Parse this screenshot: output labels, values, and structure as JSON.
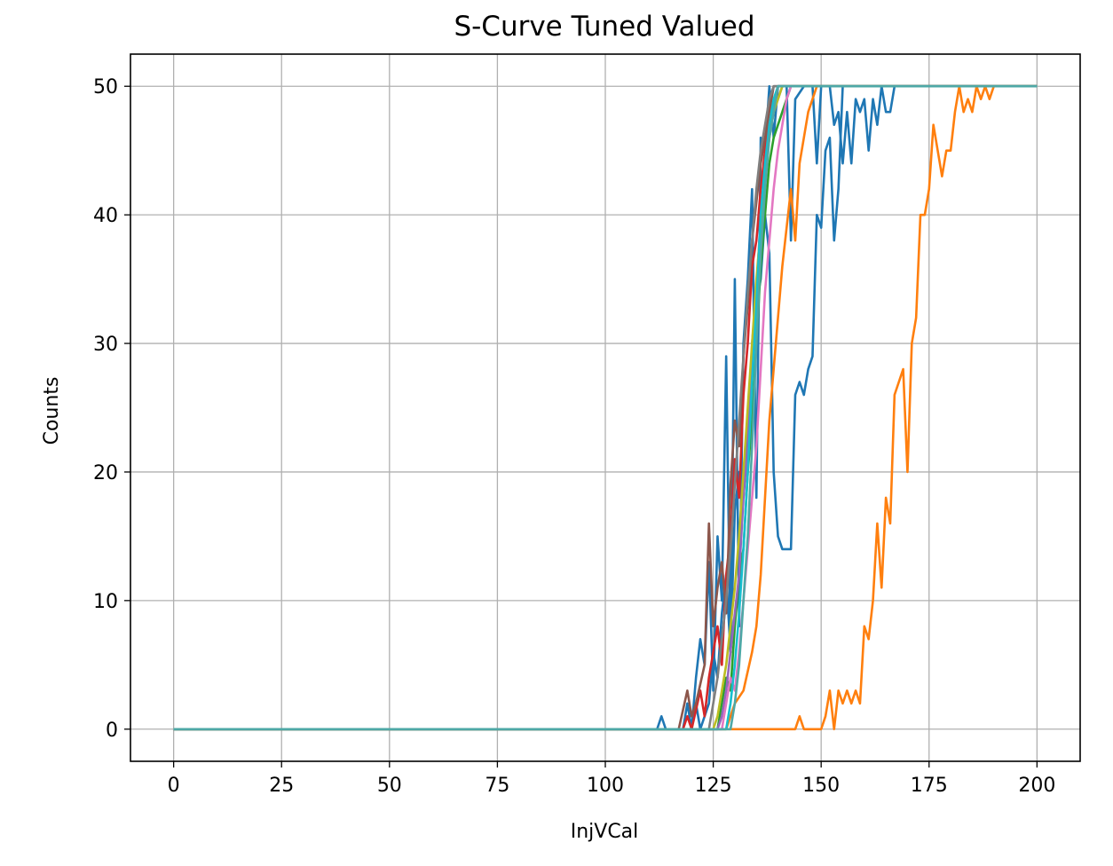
{
  "chart_data": {
    "type": "line",
    "title": "S-Curve Tuned Valued",
    "xlabel": "InjVCal",
    "ylabel": "Counts",
    "xlim": [
      -10,
      210
    ],
    "ylim": [
      -2.5,
      52.5
    ],
    "xticks": [
      0,
      25,
      50,
      75,
      100,
      125,
      150,
      175,
      200
    ],
    "yticks": [
      0,
      10,
      20,
      30,
      40,
      50
    ],
    "grid": true,
    "legend": "none",
    "x_range": [
      0,
      200
    ],
    "series": [
      {
        "color": "#1f77b4",
        "points": [
          [
            0,
            0
          ],
          [
            112,
            0
          ],
          [
            113,
            1
          ],
          [
            114,
            0
          ],
          [
            118,
            0
          ],
          [
            119,
            2
          ],
          [
            120,
            0
          ],
          [
            121,
            4
          ],
          [
            122,
            7
          ],
          [
            123,
            5
          ],
          [
            124,
            13
          ],
          [
            125,
            3
          ],
          [
            126,
            15
          ],
          [
            127,
            10
          ],
          [
            128,
            29
          ],
          [
            129,
            6
          ],
          [
            130,
            35
          ],
          [
            131,
            8
          ],
          [
            132,
            30
          ],
          [
            133,
            35
          ],
          [
            134,
            42
          ],
          [
            135,
            18
          ],
          [
            136,
            46
          ],
          [
            137,
            45
          ],
          [
            138,
            50
          ],
          [
            139,
            46
          ],
          [
            140,
            50
          ],
          [
            142,
            50
          ],
          [
            143,
            38
          ],
          [
            144,
            49
          ],
          [
            146,
            50
          ],
          [
            148,
            50
          ],
          [
            149,
            44
          ],
          [
            150,
            50
          ],
          [
            152,
            50
          ],
          [
            153,
            47
          ],
          [
            154,
            48
          ],
          [
            155,
            44
          ],
          [
            156,
            48
          ],
          [
            157,
            44
          ],
          [
            158,
            49
          ],
          [
            159,
            48
          ],
          [
            160,
            49
          ],
          [
            161,
            45
          ],
          [
            162,
            49
          ],
          [
            163,
            47
          ],
          [
            164,
            50
          ],
          [
            165,
            48
          ],
          [
            166,
            48
          ],
          [
            167,
            50
          ],
          [
            200,
            50
          ]
        ]
      },
      {
        "color": "#1f77b4",
        "points": [
          [
            0,
            0
          ],
          [
            120,
            0
          ],
          [
            121,
            2
          ],
          [
            122,
            0
          ],
          [
            124,
            2
          ],
          [
            125,
            6
          ],
          [
            126,
            4
          ],
          [
            127,
            9
          ],
          [
            128,
            12
          ],
          [
            129,
            6
          ],
          [
            130,
            17
          ],
          [
            131,
            20
          ],
          [
            132,
            18
          ],
          [
            133,
            24
          ],
          [
            134,
            28
          ],
          [
            135,
            33
          ],
          [
            136,
            35
          ],
          [
            137,
            40
          ],
          [
            138,
            37
          ],
          [
            139,
            20
          ],
          [
            140,
            15
          ],
          [
            141,
            14
          ],
          [
            143,
            14
          ],
          [
            144,
            26
          ],
          [
            145,
            27
          ],
          [
            146,
            26
          ],
          [
            147,
            28
          ],
          [
            148,
            29
          ],
          [
            149,
            40
          ],
          [
            150,
            39
          ],
          [
            151,
            45
          ],
          [
            152,
            46
          ],
          [
            153,
            38
          ],
          [
            154,
            42
          ],
          [
            155,
            50
          ],
          [
            200,
            50
          ]
        ]
      },
      {
        "color": "#ff7f0e",
        "points": [
          [
            0,
            0
          ],
          [
            144,
            0
          ],
          [
            145,
            1
          ],
          [
            146,
            0
          ],
          [
            150,
            0
          ],
          [
            151,
            1
          ],
          [
            152,
            3
          ],
          [
            153,
            0
          ],
          [
            154,
            3
          ],
          [
            155,
            2
          ],
          [
            156,
            3
          ],
          [
            157,
            2
          ],
          [
            158,
            3
          ],
          [
            159,
            2
          ],
          [
            160,
            8
          ],
          [
            161,
            7
          ],
          [
            162,
            10
          ],
          [
            163,
            16
          ],
          [
            164,
            11
          ],
          [
            165,
            18
          ],
          [
            166,
            16
          ],
          [
            167,
            26
          ],
          [
            168,
            27
          ],
          [
            169,
            28
          ],
          [
            170,
            20
          ],
          [
            171,
            30
          ],
          [
            172,
            32
          ],
          [
            173,
            40
          ],
          [
            174,
            40
          ],
          [
            175,
            42
          ],
          [
            176,
            47
          ],
          [
            177,
            45
          ],
          [
            178,
            43
          ],
          [
            179,
            45
          ],
          [
            180,
            45
          ],
          [
            181,
            48
          ],
          [
            182,
            50
          ],
          [
            183,
            48
          ],
          [
            184,
            49
          ],
          [
            185,
            48
          ],
          [
            186,
            50
          ],
          [
            187,
            49
          ],
          [
            188,
            50
          ],
          [
            189,
            49
          ],
          [
            190,
            50
          ],
          [
            200,
            50
          ]
        ]
      },
      {
        "color": "#ff7f0e",
        "points": [
          [
            0,
            0
          ],
          [
            128,
            0
          ],
          [
            130,
            2
          ],
          [
            132,
            3
          ],
          [
            134,
            6
          ],
          [
            135,
            8
          ],
          [
            136,
            12
          ],
          [
            137,
            18
          ],
          [
            138,
            24
          ],
          [
            139,
            28
          ],
          [
            140,
            32
          ],
          [
            141,
            36
          ],
          [
            142,
            39
          ],
          [
            143,
            42
          ],
          [
            144,
            38
          ],
          [
            145,
            44
          ],
          [
            146,
            46
          ],
          [
            147,
            48
          ],
          [
            148,
            49
          ],
          [
            149,
            50
          ],
          [
            200,
            50
          ]
        ]
      },
      {
        "color": "#2ca02c",
        "points": [
          [
            0,
            0
          ],
          [
            126,
            0
          ],
          [
            127,
            2
          ],
          [
            128,
            4
          ],
          [
            129,
            3
          ],
          [
            130,
            8
          ],
          [
            131,
            12
          ],
          [
            132,
            14
          ],
          [
            133,
            20
          ],
          [
            134,
            24
          ],
          [
            135,
            30
          ],
          [
            136,
            36
          ],
          [
            137,
            40
          ],
          [
            138,
            44
          ],
          [
            139,
            46
          ],
          [
            140,
            47
          ],
          [
            141,
            48
          ],
          [
            142,
            49
          ],
          [
            143,
            50
          ],
          [
            200,
            50
          ]
        ]
      },
      {
        "color": "#d62728",
        "points": [
          [
            0,
            0
          ],
          [
            118,
            0
          ],
          [
            119,
            1
          ],
          [
            120,
            0
          ],
          [
            122,
            3
          ],
          [
            123,
            1
          ],
          [
            124,
            4
          ],
          [
            125,
            6
          ],
          [
            126,
            8
          ],
          [
            127,
            5
          ],
          [
            128,
            12
          ],
          [
            129,
            15
          ],
          [
            130,
            21
          ],
          [
            131,
            18
          ],
          [
            132,
            26
          ],
          [
            133,
            30
          ],
          [
            134,
            36
          ],
          [
            135,
            38
          ],
          [
            136,
            42
          ],
          [
            137,
            45
          ],
          [
            138,
            47
          ],
          [
            139,
            48
          ],
          [
            140,
            50
          ],
          [
            200,
            50
          ]
        ]
      },
      {
        "color": "#9467bd",
        "points": [
          [
            0,
            0
          ],
          [
            126,
            0
          ],
          [
            127,
            1
          ],
          [
            128,
            3
          ],
          [
            129,
            6
          ],
          [
            130,
            9
          ],
          [
            131,
            12
          ],
          [
            132,
            18
          ],
          [
            133,
            22
          ],
          [
            134,
            30
          ],
          [
            135,
            34
          ],
          [
            136,
            40
          ],
          [
            137,
            43
          ],
          [
            138,
            46
          ],
          [
            139,
            48
          ],
          [
            140,
            49
          ],
          [
            141,
            50
          ],
          [
            200,
            50
          ]
        ]
      },
      {
        "color": "#8c564b",
        "points": [
          [
            0,
            0
          ],
          [
            117,
            0
          ],
          [
            119,
            3
          ],
          [
            120,
            1
          ],
          [
            121,
            2
          ],
          [
            123,
            5
          ],
          [
            124,
            16
          ],
          [
            125,
            8
          ],
          [
            126,
            11
          ],
          [
            127,
            13
          ],
          [
            128,
            9
          ],
          [
            129,
            19
          ],
          [
            130,
            24
          ],
          [
            131,
            22
          ],
          [
            132,
            29
          ],
          [
            133,
            33
          ],
          [
            134,
            38
          ],
          [
            135,
            41
          ],
          [
            136,
            44
          ],
          [
            137,
            46
          ],
          [
            138,
            48
          ],
          [
            139,
            50
          ],
          [
            200,
            50
          ]
        ]
      },
      {
        "color": "#e377c2",
        "points": [
          [
            0,
            0
          ],
          [
            127,
            0
          ],
          [
            128,
            2
          ],
          [
            129,
            4
          ],
          [
            130,
            3
          ],
          [
            131,
            6
          ],
          [
            132,
            10
          ],
          [
            133,
            14
          ],
          [
            134,
            18
          ],
          [
            135,
            22
          ],
          [
            136,
            28
          ],
          [
            137,
            34
          ],
          [
            138,
            38
          ],
          [
            139,
            42
          ],
          [
            140,
            45
          ],
          [
            141,
            47
          ],
          [
            142,
            49
          ],
          [
            143,
            50
          ],
          [
            200,
            50
          ]
        ]
      },
      {
        "color": "#7f7f7f",
        "points": [
          [
            0,
            0
          ],
          [
            124,
            0
          ],
          [
            125,
            2
          ],
          [
            126,
            4
          ],
          [
            127,
            7
          ],
          [
            128,
            10
          ],
          [
            129,
            14
          ],
          [
            130,
            19
          ],
          [
            131,
            24
          ],
          [
            132,
            29
          ],
          [
            133,
            34
          ],
          [
            134,
            38
          ],
          [
            135,
            42
          ],
          [
            136,
            45
          ],
          [
            137,
            47
          ],
          [
            138,
            49
          ],
          [
            139,
            50
          ],
          [
            200,
            50
          ]
        ]
      },
      {
        "color": "#bcbd22",
        "points": [
          [
            0,
            0
          ],
          [
            125,
            0
          ],
          [
            126,
            1
          ],
          [
            127,
            3
          ],
          [
            128,
            5
          ],
          [
            129,
            8
          ],
          [
            130,
            11
          ],
          [
            131,
            15
          ],
          [
            132,
            20
          ],
          [
            133,
            25
          ],
          [
            134,
            30
          ],
          [
            135,
            35
          ],
          [
            136,
            39
          ],
          [
            137,
            43
          ],
          [
            138,
            46
          ],
          [
            139,
            48
          ],
          [
            140,
            49
          ],
          [
            141,
            50
          ],
          [
            200,
            50
          ]
        ]
      },
      {
        "color": "#17becf",
        "points": [
          [
            0,
            0
          ],
          [
            128,
            0
          ],
          [
            129,
            2
          ],
          [
            130,
            5
          ],
          [
            131,
            9
          ],
          [
            132,
            14
          ],
          [
            133,
            20
          ],
          [
            134,
            27
          ],
          [
            135,
            33
          ],
          [
            136,
            40
          ],
          [
            137,
            44
          ],
          [
            138,
            47
          ],
          [
            139,
            49
          ],
          [
            140,
            50
          ],
          [
            200,
            50
          ]
        ]
      },
      {
        "color": "#4ea8a6",
        "points": [
          [
            0,
            0
          ],
          [
            129,
            0
          ],
          [
            130,
            2
          ],
          [
            131,
            5
          ],
          [
            132,
            10
          ],
          [
            133,
            15
          ],
          [
            134,
            22
          ],
          [
            135,
            30
          ],
          [
            136,
            37
          ],
          [
            137,
            42
          ],
          [
            138,
            46
          ],
          [
            139,
            48
          ],
          [
            140,
            50
          ],
          [
            200,
            50
          ]
        ]
      }
    ]
  }
}
